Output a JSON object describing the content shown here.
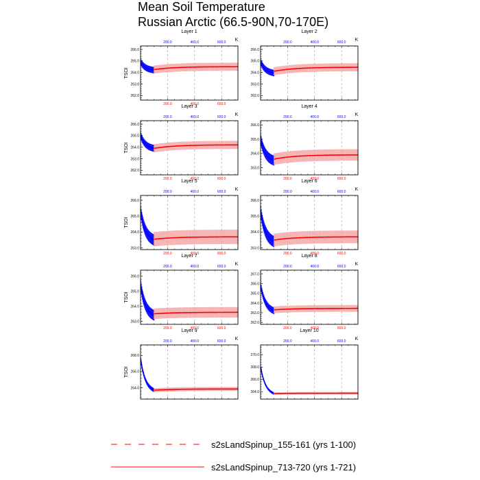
{
  "title_lines": [
    "Mean Soil Temperature",
    "Russian Arctic (66.5-90N,70-170E)"
  ],
  "colors": {
    "series_a": "#0000ff",
    "series_b": "#ff0000",
    "band_b": "#f4a0a0",
    "grid": "#9a9a9a"
  },
  "legend": [
    {
      "label": "s2sLandSpinup_155-161 (yrs 1-100)",
      "color": "#ff0000",
      "style": "dashed"
    },
    {
      "label": "s2sLandSpinup_713-720 (yrs 1-721)",
      "color": "#ff0000",
      "style": "solid"
    }
  ],
  "chart_data": [
    {
      "type": "line",
      "title": "Layer 1",
      "ylabel": "TSOI",
      "unit": "K",
      "x_top_ticks": [
        200,
        400,
        600
      ],
      "x_bottom_ticks": [
        200,
        400,
        600
      ],
      "xlim": [
        0,
        721
      ],
      "ylim": [
        261.6,
        266.3
      ],
      "yticks": [
        262.0,
        263.0,
        264.0,
        265.0,
        266.0
      ],
      "series": [
        {
          "x_range": [
            1,
            100
          ],
          "start": 264.9,
          "end": 264.2,
          "spread": 0.28
        },
        {
          "x_range": [
            100,
            721
          ],
          "start": 264.25,
          "end": 264.5,
          "spread": 0.35
        }
      ]
    },
    {
      "type": "line",
      "title": "Layer 2",
      "ylabel": "",
      "unit": "K",
      "x_top_ticks": [
        200,
        400,
        600
      ],
      "x_bottom_ticks": [],
      "xlim": [
        0,
        721
      ],
      "ylim": [
        261.6,
        266.3
      ],
      "yticks": [
        262.0,
        263.0,
        264.0,
        265.0,
        266.0
      ],
      "series": [
        {
          "x_range": [
            1,
            100
          ],
          "start": 264.9,
          "end": 263.95,
          "spread": 0.28
        },
        {
          "x_range": [
            100,
            721
          ],
          "start": 264.1,
          "end": 264.45,
          "spread": 0.35
        }
      ]
    },
    {
      "type": "line",
      "title": "Layer 3",
      "ylabel": "TSOI",
      "unit": "K",
      "x_top_ticks": [
        200,
        400,
        600
      ],
      "x_bottom_ticks": [
        200,
        400,
        600
      ],
      "xlim": [
        0,
        721
      ],
      "ylim": [
        261.6,
        266.3
      ],
      "yticks": [
        262.0,
        263.0,
        264.0,
        265.0,
        266.0
      ],
      "series": [
        {
          "x_range": [
            1,
            100
          ],
          "start": 265.0,
          "end": 263.9,
          "spread": 0.3
        },
        {
          "x_range": [
            100,
            721
          ],
          "start": 263.9,
          "end": 264.2,
          "spread": 0.35
        }
      ]
    },
    {
      "type": "line",
      "title": "Layer 4",
      "ylabel": "",
      "unit": "K",
      "x_top_ticks": [
        200,
        400,
        600
      ],
      "x_bottom_ticks": [
        200,
        400,
        600
      ],
      "xlim": [
        0,
        721
      ],
      "ylim": [
        262.5,
        266.3
      ],
      "yticks": [
        263.0,
        264.0,
        265.0,
        266.0
      ],
      "series": [
        {
          "x_range": [
            1,
            100
          ],
          "start": 265.0,
          "end": 263.5,
          "spread": 0.35
        },
        {
          "x_range": [
            100,
            721
          ],
          "start": 263.6,
          "end": 263.9,
          "spread": 0.4
        }
      ]
    },
    {
      "type": "line",
      "title": "Layer 5",
      "ylabel": "TSOI",
      "unit": "K",
      "x_top_ticks": [
        200,
        400,
        600
      ],
      "x_bottom_ticks": [
        200,
        400,
        600
      ],
      "xlim": [
        0,
        721
      ],
      "ylim": [
        262.9,
        266.3
      ],
      "yticks": [
        263.0,
        264.0,
        265.0,
        266.0
      ],
      "series": [
        {
          "x_range": [
            1,
            100
          ],
          "start": 265.3,
          "end": 263.5,
          "spread": 0.35
        },
        {
          "x_range": [
            100,
            721
          ],
          "start": 263.55,
          "end": 263.7,
          "spread": 0.45
        }
      ]
    },
    {
      "type": "line",
      "title": "Layer 6",
      "ylabel": "",
      "unit": "K",
      "x_top_ticks": [
        200,
        400,
        600
      ],
      "x_bottom_ticks": [
        200,
        400,
        600
      ],
      "xlim": [
        0,
        721
      ],
      "ylim": [
        262.9,
        266.3
      ],
      "yticks": [
        263.0,
        264.0,
        265.0,
        266.0
      ],
      "series": [
        {
          "x_range": [
            1,
            100
          ],
          "start": 265.3,
          "end": 263.4,
          "spread": 0.35
        },
        {
          "x_range": [
            100,
            721
          ],
          "start": 263.5,
          "end": 263.7,
          "spread": 0.4
        }
      ]
    },
    {
      "type": "line",
      "title": "Layer 7",
      "ylabel": "TSOI",
      "unit": "K",
      "x_top_ticks": [
        200,
        400,
        600
      ],
      "x_bottom_ticks": [
        200,
        400,
        600
      ],
      "xlim": [
        0,
        721
      ],
      "ylim": [
        262.8,
        266.4
      ],
      "yticks": [
        263.0,
        264.0,
        265.0,
        266.0
      ],
      "series": [
        {
          "x_range": [
            1,
            100
          ],
          "start": 265.4,
          "end": 263.4,
          "spread": 0.35
        },
        {
          "x_range": [
            100,
            721
          ],
          "start": 263.5,
          "end": 263.6,
          "spread": 0.35
        }
      ]
    },
    {
      "type": "line",
      "title": "Layer 8",
      "ylabel": "",
      "unit": "K",
      "x_top_ticks": [
        200,
        400,
        600
      ],
      "x_bottom_ticks": [
        200,
        400,
        600
      ],
      "xlim": [
        0,
        721
      ],
      "ylim": [
        261.8,
        267.4
      ],
      "yticks": [
        262.0,
        263.0,
        264.0,
        265.0,
        266.0,
        267.0
      ],
      "series": [
        {
          "x_range": [
            1,
            100
          ],
          "start": 265.8,
          "end": 263.2,
          "spread": 0.35
        },
        {
          "x_range": [
            100,
            721
          ],
          "start": 263.3,
          "end": 263.45,
          "spread": 0.35
        }
      ]
    },
    {
      "type": "line",
      "title": "Layer 9",
      "ylabel": "TSOI",
      "unit": "K",
      "x_top_ticks": [
        200,
        400,
        600
      ],
      "x_bottom_ticks": [],
      "xlim": [
        0,
        721
      ],
      "ylim": [
        262.6,
        269.3
      ],
      "yticks": [
        264.0,
        266.0,
        268.0
      ],
      "series": [
        {
          "x_range": [
            1,
            100
          ],
          "start": 267.5,
          "end": 263.7,
          "spread": 0.25
        },
        {
          "x_range": [
            100,
            721
          ],
          "start": 263.7,
          "end": 263.85,
          "spread": 0.25
        }
      ]
    },
    {
      "type": "line",
      "title": "Layer 10",
      "ylabel": "",
      "unit": "K",
      "x_top_ticks": [
        200,
        400,
        600
      ],
      "x_bottom_ticks": [],
      "xlim": [
        0,
        721
      ],
      "ylim": [
        262.8,
        271.6
      ],
      "yticks": [
        264.0,
        266.0,
        268.0,
        270.0
      ],
      "series": [
        {
          "x_range": [
            1,
            100
          ],
          "start": 268.0,
          "end": 263.7,
          "spread": 0.2
        },
        {
          "x_range": [
            100,
            721
          ],
          "start": 263.7,
          "end": 263.75,
          "spread": 0.2
        }
      ]
    }
  ]
}
